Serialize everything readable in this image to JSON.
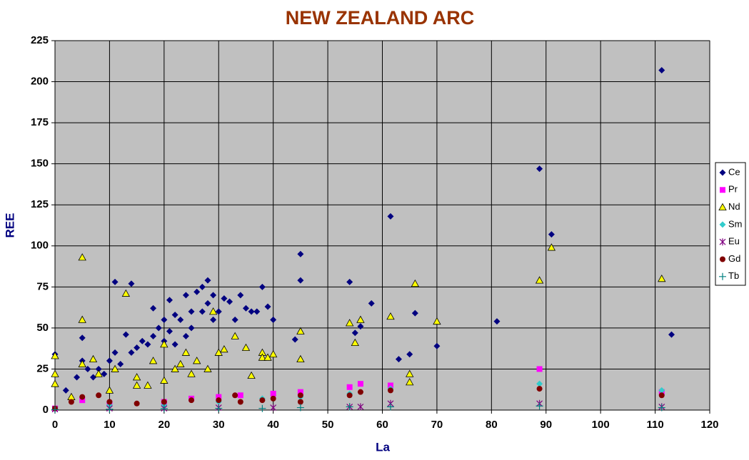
{
  "chart_data": {
    "type": "scatter",
    "title": "NEW ZEALAND ARC",
    "x_label": "La",
    "y_label": "REE",
    "xlim": [
      0,
      120
    ],
    "xticks": [
      0,
      10,
      20,
      30,
      40,
      50,
      60,
      70,
      80,
      90,
      100,
      110,
      120
    ],
    "ylim": [
      0,
      225
    ],
    "yticks": [
      0,
      25,
      50,
      75,
      100,
      125,
      150,
      175,
      200,
      225
    ],
    "grid": true,
    "legend": "right",
    "series": [
      {
        "name": "Ce",
        "color": "#000080",
        "marker": "diamond",
        "x": [
          0,
          2,
          4,
          5,
          5,
          6,
          7,
          8,
          9,
          10,
          11,
          11,
          12,
          13,
          14,
          14,
          15,
          16,
          17,
          18,
          18,
          19,
          20,
          20,
          21,
          21,
          22,
          23,
          24,
          25,
          26,
          27,
          28,
          28,
          29,
          30,
          31,
          32,
          33,
          34,
          35,
          36,
          37,
          38,
          39,
          40,
          44,
          45,
          45,
          54,
          55,
          56,
          58,
          61.5,
          63,
          65,
          66,
          70,
          81,
          88.8,
          91,
          111.2,
          113,
          25,
          24,
          22,
          27,
          29
        ],
        "values": [
          34,
          12,
          20,
          44,
          30,
          25,
          20,
          25,
          22,
          30,
          78,
          35,
          28,
          46,
          77,
          35,
          38,
          42,
          40,
          45,
          62,
          50,
          42,
          55,
          67,
          48,
          58,
          55,
          70,
          60,
          72,
          75,
          79,
          65,
          70,
          60,
          68,
          66,
          55,
          70,
          62,
          60,
          60,
          75,
          63,
          55,
          43,
          95,
          79,
          78,
          47,
          51,
          65,
          118,
          31,
          34,
          59,
          39,
          54,
          147,
          107,
          207,
          46,
          50,
          45,
          40,
          60,
          55
        ]
      },
      {
        "name": "Pr",
        "color": "#ff00ff",
        "marker": "square",
        "x": [
          0,
          5,
          10,
          20,
          25,
          30,
          34,
          40,
          45,
          54,
          56,
          61.5,
          88.8,
          111.2
        ],
        "values": [
          1,
          6,
          4,
          5,
          7,
          8,
          9,
          10,
          11,
          14,
          16,
          15,
          25,
          11
        ]
      },
      {
        "name": "Nd",
        "color": "#ffff00",
        "marker": "triangle",
        "x": [
          0,
          0,
          0,
          5,
          5,
          5,
          7,
          8,
          13,
          11,
          15,
          18,
          20,
          22,
          24,
          26,
          28,
          29,
          30,
          31,
          33,
          35,
          36,
          38,
          38,
          39,
          40,
          45,
          45,
          54,
          55,
          56,
          61.5,
          65,
          65,
          66,
          70,
          88.8,
          91,
          111.2,
          10,
          15,
          20,
          25,
          3,
          17,
          23
        ],
        "values": [
          33,
          22,
          16,
          93,
          55,
          28,
          31,
          22,
          71,
          25,
          20,
          30,
          40,
          25,
          35,
          30,
          25,
          60,
          35,
          37,
          45,
          38,
          21,
          35,
          32,
          32,
          34,
          48,
          31,
          53,
          41,
          55,
          57,
          22,
          17,
          77,
          54,
          79,
          99,
          80,
          12,
          15,
          18,
          22,
          8,
          15,
          28
        ]
      },
      {
        "name": "Sm",
        "color": "#33cccc",
        "marker": "diamond",
        "x": [
          0,
          10,
          20,
          30,
          38,
          45,
          54,
          61.5,
          88.8,
          111.2
        ],
        "values": [
          1,
          3,
          3,
          5,
          7,
          8,
          10,
          13,
          16,
          12
        ]
      },
      {
        "name": "Eu",
        "color": "#800080",
        "marker": "asterisk",
        "x": [
          0,
          10,
          20,
          30,
          40,
          54,
          56,
          61.5,
          88.8,
          111.2
        ],
        "values": [
          0.5,
          1,
          1,
          1.5,
          1.5,
          2,
          2,
          4,
          4,
          2
        ]
      },
      {
        "name": "Gd",
        "color": "#800000",
        "marker": "circle",
        "x": [
          0,
          3,
          5,
          8,
          10,
          15,
          20,
          25,
          30,
          33,
          34,
          38,
          40,
          45,
          45,
          54,
          56,
          61.5,
          88.8,
          111.2
        ],
        "values": [
          1,
          5,
          8,
          9,
          5,
          4,
          5,
          6,
          6,
          9,
          5,
          6,
          7,
          9,
          5,
          9,
          11,
          12,
          13,
          9
        ]
      },
      {
        "name": "Tb",
        "color": "#008080",
        "marker": "plus",
        "x": [
          0,
          10,
          20,
          30,
          38,
          45,
          54,
          61.5,
          88.8,
          111.2
        ],
        "values": [
          0.3,
          0.5,
          0.8,
          1,
          1,
          1.5,
          2,
          2,
          2.5,
          1.5
        ]
      }
    ]
  }
}
